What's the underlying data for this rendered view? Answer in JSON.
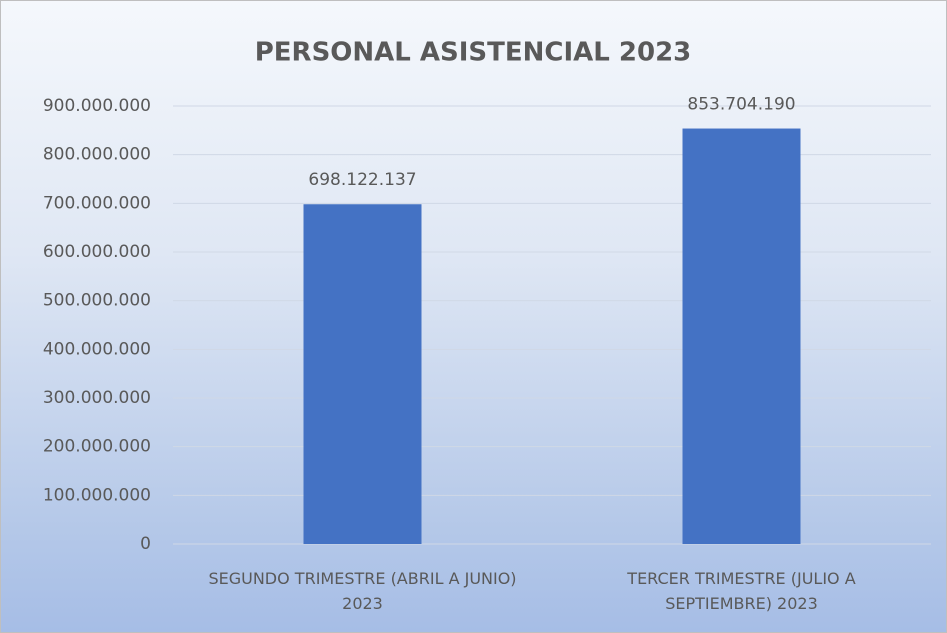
{
  "chart_data": {
    "type": "bar",
    "title": "PERSONAL ASISTENCIAL 2023",
    "categories": [
      "SEGUNDO  TRIMESTRE (ABRIL A JUNIO) 2023",
      "TERCER TRIMESTRE (JULIO A SEPTIEMBRE) 2023"
    ],
    "values": [
      698122137,
      853704190
    ],
    "value_labels": [
      "698.122.137",
      "853.704.190"
    ],
    "color": "#4472c4",
    "ylim": [
      0,
      900000000
    ],
    "yticks": [
      0,
      {
        "value": 100000000,
        "label": "100.000.000"
      },
      {
        "value": 200000000,
        "label": "200.000.000"
      },
      {
        "value": 300000000,
        "label": "300.000.000"
      },
      {
        "value": 400000000,
        "label": "400.000.000"
      },
      {
        "value": 500000000,
        "label": "500.000.000"
      },
      {
        "value": 600000000,
        "label": "600.000.000"
      },
      {
        "value": 700000000,
        "label": "700.000.000"
      },
      {
        "value": 800000000,
        "label": "800.000.000"
      },
      {
        "value": 900000000,
        "label": "900.000.000"
      }
    ],
    "grid": true
  }
}
